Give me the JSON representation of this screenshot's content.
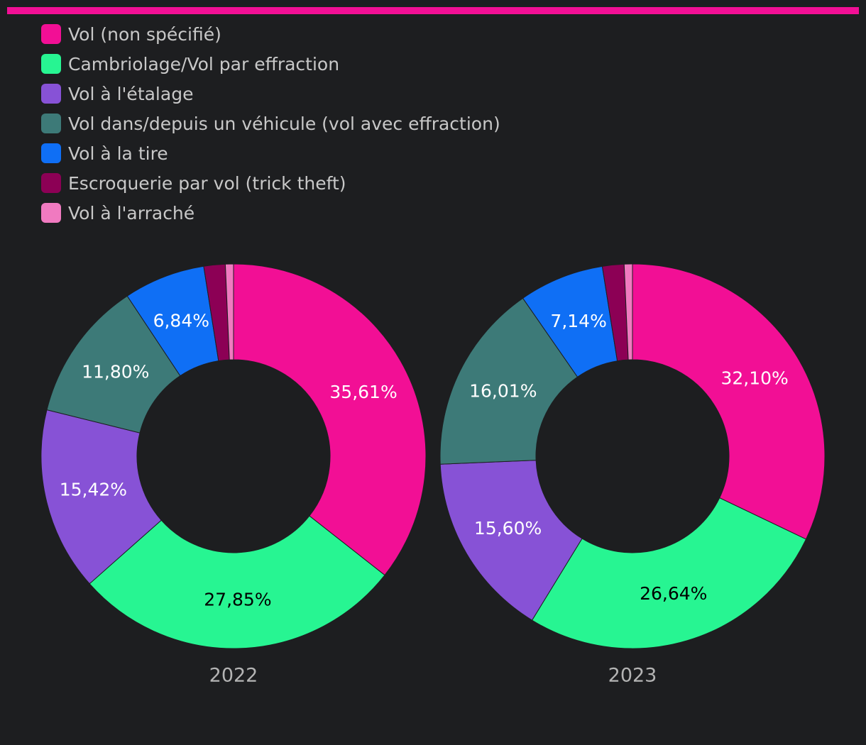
{
  "colors": {
    "background": "#1d1e20",
    "accent_bar": "#f20f95"
  },
  "legend": [
    {
      "label": "Vol (non spécifié)",
      "color": "#f20f95"
    },
    {
      "label": "Cambriolage/Vol par effraction",
      "color": "#27f592"
    },
    {
      "label": "Vol à l'étalage",
      "color": "#8752d6"
    },
    {
      "label": "Vol dans/depuis un véhicule (vol avec effraction)",
      "color": "#3d7a78"
    },
    {
      "label": "Vol à la tire",
      "color": "#0f6ff5"
    },
    {
      "label": "Escroquerie par vol (trick theft)",
      "color": "#8c0055"
    },
    {
      "label": "Vol à l'arraché",
      "color": "#f07ac0"
    }
  ],
  "chart_data": [
    {
      "type": "pie",
      "donut": true,
      "title": "2022",
      "categories": [
        "Vol (non spécifié)",
        "Cambriolage/Vol par effraction",
        "Vol à l'étalage",
        "Vol dans/depuis un véhicule (vol avec effraction)",
        "Vol à la tire",
        "Escroquerie par vol (trick theft)",
        "Vol à l'arraché"
      ],
      "values": [
        35.61,
        27.85,
        15.42,
        11.8,
        6.84,
        1.8,
        0.68
      ],
      "labels": [
        "35,61%",
        "27,85%",
        "15,42%",
        "11,80%",
        "6,84%",
        "",
        ""
      ],
      "label_colors": [
        "#ffffff",
        "#000000",
        "#ffffff",
        "#ffffff",
        "#ffffff",
        "#ffffff",
        "#ffffff"
      ]
    },
    {
      "type": "pie",
      "donut": true,
      "title": "2023",
      "categories": [
        "Vol (non spécifié)",
        "Cambriolage/Vol par effraction",
        "Vol à l'étalage",
        "Vol dans/depuis un véhicule (vol avec effraction)",
        "Vol à la tire",
        "Escroquerie par vol (trick theft)",
        "Vol à l'arraché"
      ],
      "values": [
        32.1,
        26.64,
        15.6,
        16.01,
        7.14,
        1.82,
        0.69
      ],
      "labels": [
        "32,10%",
        "26,64%",
        "15,60%",
        "16,01%",
        "7,14%",
        "",
        ""
      ],
      "label_colors": [
        "#ffffff",
        "#000000",
        "#ffffff",
        "#ffffff",
        "#ffffff",
        "#ffffff",
        "#ffffff"
      ]
    }
  ]
}
